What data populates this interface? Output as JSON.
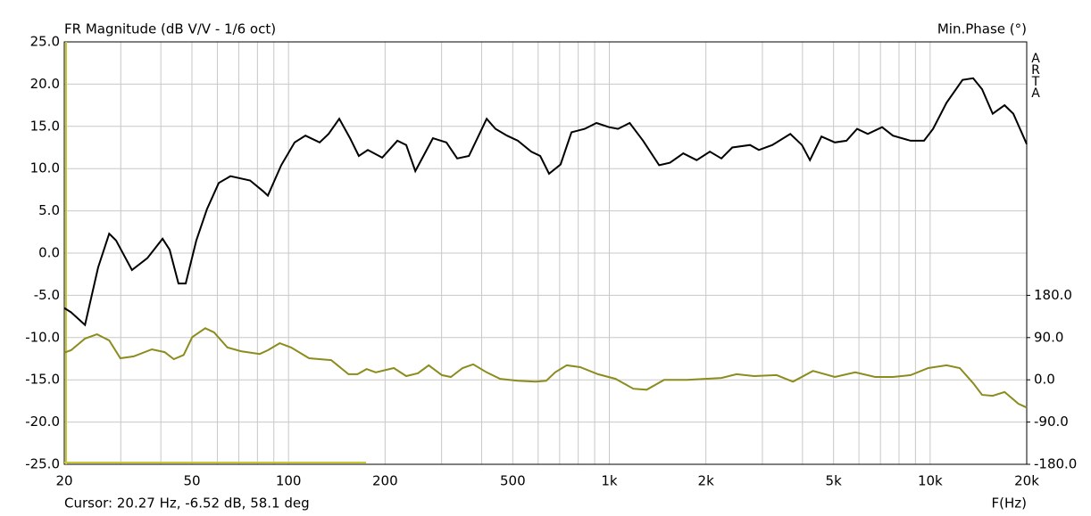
{
  "chart_data": {
    "type": "line",
    "title": "FR Magnitude (dB V/V - 1/6 oct)",
    "y2_label": "Min.Phase (°)",
    "brand": "ARTA",
    "x_label": "F(Hz)",
    "cursor": "Cursor: 20.27 Hz, -6.52 dB, 58.1 deg",
    "xscale": "log",
    "grid": true,
    "xlim": [
      20,
      20000
    ],
    "xticks": [
      20,
      50,
      100,
      200,
      500,
      {
        "value": 1000,
        "label": "1k"
      },
      {
        "value": 2000,
        "label": "2k"
      },
      {
        "value": 5000,
        "label": "5k"
      },
      {
        "value": 10000,
        "label": "10k"
      },
      {
        "value": 20000,
        "label": "20k"
      }
    ],
    "xminor": [
      30,
      40,
      60,
      70,
      80,
      90,
      300,
      400,
      600,
      700,
      800,
      900,
      3000,
      4000,
      6000,
      7000,
      8000,
      9000
    ],
    "ylim": [
      -25,
      25
    ],
    "yticks": [
      {
        "value": -25,
        "label": "-25.0"
      },
      {
        "value": -20,
        "label": "-20.0"
      },
      {
        "value": -15,
        "label": "-15.0"
      },
      {
        "value": -10,
        "label": "-10.0"
      },
      {
        "value": -5,
        "label": "-5.0"
      },
      {
        "value": 0,
        "label": "0.0"
      },
      {
        "value": 5,
        "label": "5.0"
      },
      {
        "value": 10,
        "label": "10.0"
      },
      {
        "value": 15,
        "label": "15.0"
      },
      {
        "value": 20,
        "label": "20.0"
      },
      {
        "value": 25,
        "label": "25.0"
      }
    ],
    "y2lim": [
      -180,
      720
    ],
    "y2ticks": [
      {
        "value": -180,
        "label": "-180.0"
      },
      {
        "value": -90,
        "label": "-90.0"
      },
      {
        "value": 0,
        "label": "0.0"
      },
      {
        "value": 90,
        "label": "90.0"
      },
      {
        "value": 180,
        "label": "180.0"
      }
    ],
    "series": [
      {
        "color": "#000000",
        "x": [
          20,
          21,
          23.2,
          25.5,
          27.6,
          29,
          32.5,
          36.3,
          40.5,
          42.6,
          45.4,
          47.8,
          51.6,
          55.7,
          60.6,
          65.9,
          75.9,
          83.5,
          86.2,
          94.9,
          104.5,
          112.9,
          125,
          133.3,
          143.9,
          155.5,
          165.6,
          176.7,
          195.9,
          218.4,
          232.8,
          248.4,
          281.9,
          310.5,
          335.5,
          364.9,
          414.6,
          441.7,
          479.8,
          518.6,
          571,
          608.8,
          649,
          705,
          762,
          838,
          912,
          998,
          1064,
          1157,
          1274,
          1430,
          1545,
          1700,
          1871,
          2058,
          2235,
          2416,
          2745,
          2926,
          3222,
          3665,
          3983,
          4219,
          4584,
          5047,
          5483,
          5918,
          6394,
          7082,
          7655,
          8697,
          9572,
          10210,
          11250,
          12620,
          13620,
          14520,
          15670,
          17060,
          18170,
          20000
        ],
        "values": [
          -6.5,
          -7,
          -8.5,
          -1.7,
          2.3,
          1.5,
          -2,
          -0.6,
          1.7,
          0.4,
          -3.6,
          -3.6,
          1.5,
          5.2,
          8.3,
          9.1,
          8.6,
          7.3,
          6.8,
          10.4,
          13.1,
          13.9,
          13.1,
          14.1,
          15.9,
          13.6,
          11.5,
          12.2,
          11.3,
          13.3,
          12.8,
          9.7,
          13.6,
          13.1,
          11.2,
          11.5,
          15.9,
          14.7,
          13.9,
          13.3,
          12,
          11.5,
          9.4,
          10.5,
          14.3,
          14.7,
          15.4,
          14.9,
          14.7,
          15.4,
          13.3,
          10.4,
          10.7,
          11.8,
          11,
          12,
          11.2,
          12.5,
          12.8,
          12.2,
          12.8,
          14.1,
          12.8,
          11,
          13.8,
          13.1,
          13.3,
          14.7,
          14.1,
          14.9,
          13.9,
          13.3,
          13.3,
          14.7,
          17.8,
          20.5,
          20.7,
          19.4,
          16.5,
          17.5,
          16.5,
          12.9
        ]
      },
      {
        "color": "#8c8c1e",
        "axis": "y2",
        "x": [
          20,
          21,
          23.2,
          25.3,
          27.6,
          29.9,
          32.9,
          37.5,
          41.1,
          43.9,
          47.1,
          50.1,
          55,
          58.6,
          64.5,
          71.1,
          81.3,
          86.2,
          93.9,
          101.9,
          115.9,
          135.9,
          153.9,
          164,
          175.2,
          186.9,
          212.9,
          232.8,
          253.2,
          273.5,
          300.6,
          320.6,
          348.7,
          376.4,
          414.6,
          456.8,
          518.6,
          588.9,
          635.6,
          677.8,
          736.4,
          811.3,
          921.6,
          1046,
          1188,
          1307,
          1482,
          1747,
          1986,
          2235,
          2492,
          2826,
          3323,
          3733,
          4313,
          5047,
          5842,
          6742,
          7655,
          8697,
          9862,
          11250,
          12370,
          13620,
          14520,
          15670,
          17060,
          18860,
          20000
        ],
        "values": [
          58,
          63,
          88,
          97,
          84,
          46,
          50,
          65,
          59,
          44,
          53,
          91,
          110,
          101,
          69,
          61,
          55,
          63,
          78,
          69,
          46,
          42,
          12,
          12,
          23,
          16,
          25,
          8,
          14,
          31,
          10,
          6,
          25,
          33,
          16,
          2,
          -2,
          -4,
          -2,
          16,
          31,
          27,
          12,
          2,
          -19,
          -21,
          0,
          0,
          2,
          4,
          12,
          8,
          10,
          -4,
          19,
          6,
          16,
          6,
          6,
          10,
          25,
          31,
          25,
          -7,
          -32,
          -34,
          -26,
          -51,
          -59
        ]
      }
    ]
  }
}
